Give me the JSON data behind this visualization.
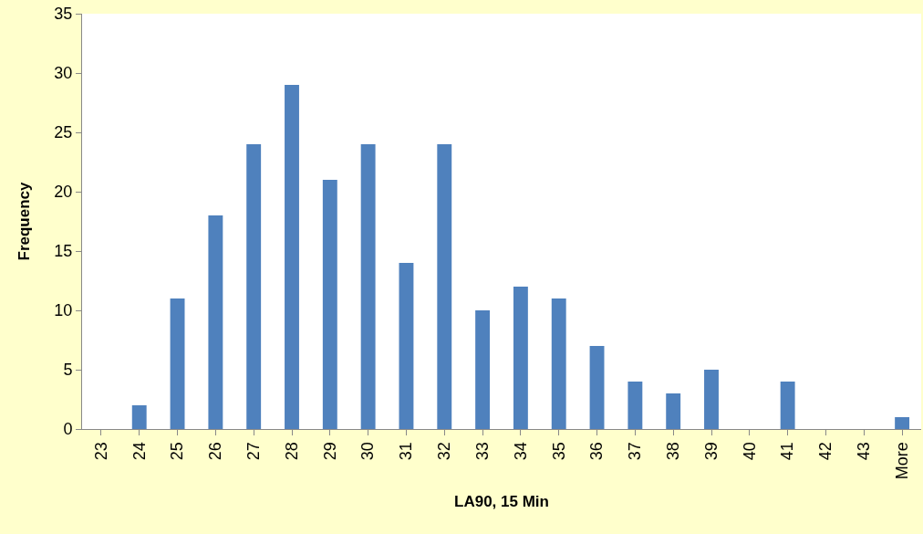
{
  "chart_data": {
    "type": "bar",
    "xlabel": "LA90, 15 Min",
    "ylabel": "Frequency",
    "categories": [
      "23",
      "24",
      "25",
      "26",
      "27",
      "28",
      "29",
      "30",
      "31",
      "32",
      "33",
      "34",
      "35",
      "36",
      "37",
      "38",
      "39",
      "40",
      "41",
      "42",
      "43",
      "More"
    ],
    "values": [
      0,
      2,
      11,
      18,
      24,
      29,
      21,
      24,
      14,
      24,
      10,
      12,
      11,
      7,
      4,
      3,
      5,
      0,
      4,
      0,
      0,
      1
    ],
    "color": "#4f81bd",
    "ylim": [
      0,
      35
    ],
    "yticks": [
      0,
      5,
      10,
      15,
      20,
      25,
      30,
      35
    ],
    "grid": false
  }
}
